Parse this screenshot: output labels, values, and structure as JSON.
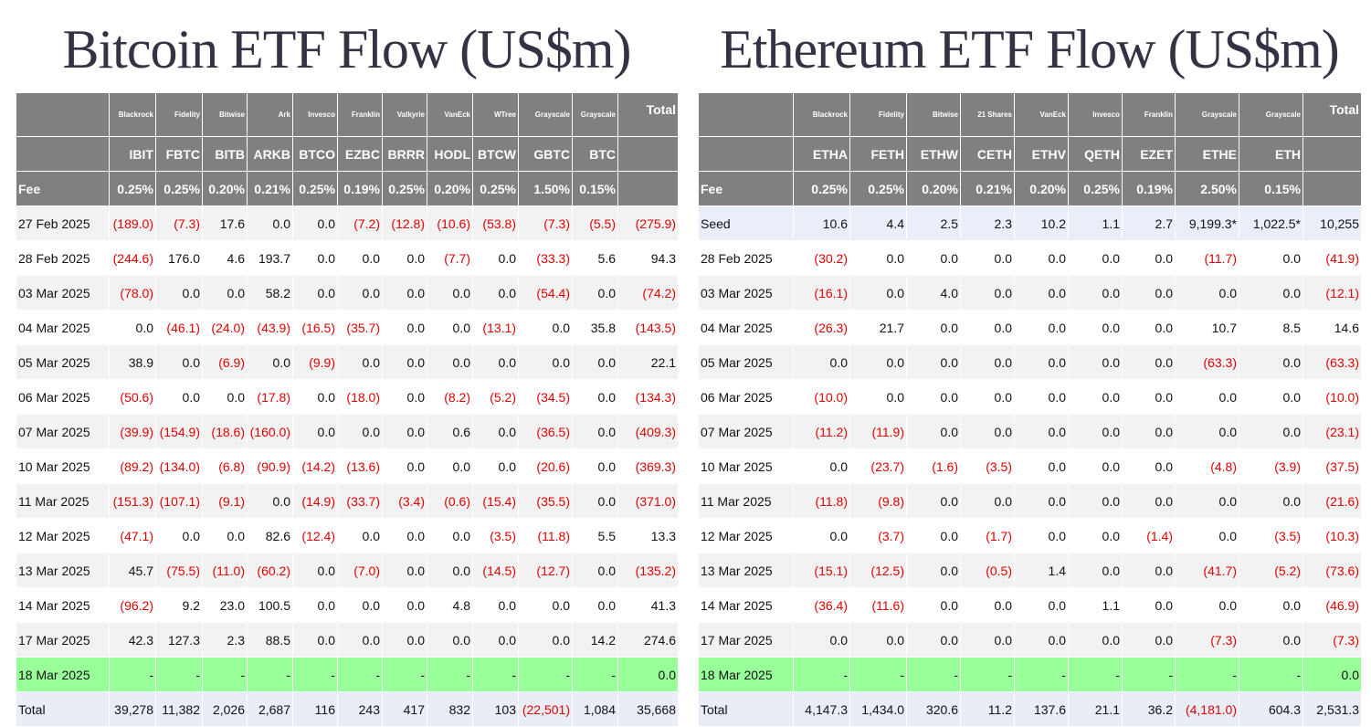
{
  "bitcoin": {
    "title": "Bitcoin ETF Flow (US$m)",
    "issuers": [
      "Blackrock",
      "Fidelity",
      "Bitwise",
      "Ark",
      "Invesco",
      "Franklin",
      "Valkyrie",
      "VanEck",
      "WTree",
      "Grayscale",
      "Grayscale"
    ],
    "total_header": "Total",
    "tickers": [
      "IBIT",
      "FBTC",
      "BITB",
      "ARKB",
      "BTCO",
      "EZBC",
      "BRRR",
      "HODL",
      "BTCW",
      "GBTC",
      "BTC"
    ],
    "fee_label": "Fee",
    "fees": [
      "0.25%",
      "0.25%",
      "0.20%",
      "0.21%",
      "0.25%",
      "0.19%",
      "0.25%",
      "0.20%",
      "0.25%",
      "1.50%",
      "0.15%"
    ],
    "rows": [
      {
        "date": "27 Feb 2025",
        "cells": [
          "(189.0)",
          "(7.3)",
          "17.6",
          "0.0",
          "0.0",
          "(7.2)",
          "(12.8)",
          "(10.6)",
          "(53.8)",
          "(7.3)",
          "(5.5)",
          "(275.9)"
        ]
      },
      {
        "date": "28 Feb 2025",
        "cells": [
          "(244.6)",
          "176.0",
          "4.6",
          "193.7",
          "0.0",
          "0.0",
          "0.0",
          "(7.7)",
          "0.0",
          "(33.3)",
          "5.6",
          "94.3"
        ]
      },
      {
        "date": "03 Mar 2025",
        "cells": [
          "(78.0)",
          "0.0",
          "0.0",
          "58.2",
          "0.0",
          "0.0",
          "0.0",
          "0.0",
          "0.0",
          "(54.4)",
          "0.0",
          "(74.2)"
        ]
      },
      {
        "date": "04 Mar 2025",
        "cells": [
          "0.0",
          "(46.1)",
          "(24.0)",
          "(43.9)",
          "(16.5)",
          "(35.7)",
          "0.0",
          "0.0",
          "(13.1)",
          "0.0",
          "35.8",
          "(143.5)"
        ]
      },
      {
        "date": "05 Mar 2025",
        "cells": [
          "38.9",
          "0.0",
          "(6.9)",
          "0.0",
          "(9.9)",
          "0.0",
          "0.0",
          "0.0",
          "0.0",
          "0.0",
          "0.0",
          "22.1"
        ]
      },
      {
        "date": "06 Mar 2025",
        "cells": [
          "(50.6)",
          "0.0",
          "0.0",
          "(17.8)",
          "0.0",
          "(18.0)",
          "0.0",
          "(8.2)",
          "(5.2)",
          "(34.5)",
          "0.0",
          "(134.3)"
        ]
      },
      {
        "date": "07 Mar 2025",
        "cells": [
          "(39.9)",
          "(154.9)",
          "(18.6)",
          "(160.0)",
          "0.0",
          "0.0",
          "0.0",
          "0.6",
          "0.0",
          "(36.5)",
          "0.0",
          "(409.3)"
        ]
      },
      {
        "date": "10 Mar 2025",
        "cells": [
          "(89.2)",
          "(134.0)",
          "(6.8)",
          "(90.9)",
          "(14.2)",
          "(13.6)",
          "0.0",
          "0.0",
          "0.0",
          "(20.6)",
          "0.0",
          "(369.3)"
        ]
      },
      {
        "date": "11 Mar 2025",
        "cells": [
          "(151.3)",
          "(107.1)",
          "(9.1)",
          "0.0",
          "(14.9)",
          "(33.7)",
          "(3.4)",
          "(0.6)",
          "(15.4)",
          "(35.5)",
          "0.0",
          "(371.0)"
        ]
      },
      {
        "date": "12 Mar 2025",
        "cells": [
          "(47.1)",
          "0.0",
          "0.0",
          "82.6",
          "(12.4)",
          "0.0",
          "0.0",
          "0.0",
          "(3.5)",
          "(11.8)",
          "5.5",
          "13.3"
        ]
      },
      {
        "date": "13 Mar 2025",
        "cells": [
          "45.7",
          "(75.5)",
          "(11.0)",
          "(60.2)",
          "0.0",
          "(7.0)",
          "0.0",
          "0.0",
          "(14.5)",
          "(12.7)",
          "0.0",
          "(135.2)"
        ]
      },
      {
        "date": "14 Mar 2025",
        "cells": [
          "(96.2)",
          "9.2",
          "23.0",
          "100.5",
          "0.0",
          "0.0",
          "0.0",
          "4.8",
          "0.0",
          "0.0",
          "0.0",
          "41.3"
        ]
      },
      {
        "date": "17 Mar 2025",
        "cells": [
          "42.3",
          "127.3",
          "2.3",
          "88.5",
          "0.0",
          "0.0",
          "0.0",
          "0.0",
          "0.0",
          "0.0",
          "14.2",
          "274.6"
        ]
      },
      {
        "date": "18 Mar 2025",
        "cells": [
          "-",
          "-",
          "-",
          "-",
          "-",
          "-",
          "-",
          "-",
          "-",
          "-",
          "-",
          "0.0"
        ]
      }
    ],
    "total": {
      "label": "Total",
      "cells": [
        "39,278",
        "11,382",
        "2,026",
        "2,687",
        "116",
        "243",
        "417",
        "832",
        "103",
        "(22,501)",
        "1,084",
        "35,668"
      ]
    }
  },
  "ethereum": {
    "title": "Ethereum ETF Flow (US$m)",
    "issuers": [
      "Blackrock",
      "Fidelity",
      "Bitwise",
      "21 Shares",
      "VanEck",
      "Invesco",
      "Franklin",
      "Grayscale",
      "Grayscale"
    ],
    "total_header": "Total",
    "tickers": [
      "ETHA",
      "FETH",
      "ETHW",
      "CETH",
      "ETHV",
      "QETH",
      "EZET",
      "ETHE",
      "ETH"
    ],
    "fee_label": "Fee",
    "fees": [
      "0.25%",
      "0.25%",
      "0.20%",
      "0.21%",
      "0.20%",
      "0.25%",
      "0.19%",
      "2.50%",
      "0.15%"
    ],
    "rows": [
      {
        "date": "Seed",
        "cells": [
          "10.6",
          "4.4",
          "2.5",
          "2.3",
          "10.2",
          "1.1",
          "2.7",
          "9,199.3*",
          "1,022.5*",
          "10,255"
        ]
      },
      {
        "date": "28 Feb 2025",
        "cells": [
          "(30.2)",
          "0.0",
          "0.0",
          "0.0",
          "0.0",
          "0.0",
          "0.0",
          "(11.7)",
          "0.0",
          "(41.9)"
        ]
      },
      {
        "date": "03 Mar 2025",
        "cells": [
          "(16.1)",
          "0.0",
          "4.0",
          "0.0",
          "0.0",
          "0.0",
          "0.0",
          "0.0",
          "0.0",
          "(12.1)"
        ]
      },
      {
        "date": "04 Mar 2025",
        "cells": [
          "(26.3)",
          "21.7",
          "0.0",
          "0.0",
          "0.0",
          "0.0",
          "0.0",
          "10.7",
          "8.5",
          "14.6"
        ]
      },
      {
        "date": "05 Mar 2025",
        "cells": [
          "0.0",
          "0.0",
          "0.0",
          "0.0",
          "0.0",
          "0.0",
          "0.0",
          "(63.3)",
          "0.0",
          "(63.3)"
        ]
      },
      {
        "date": "06 Mar 2025",
        "cells": [
          "(10.0)",
          "0.0",
          "0.0",
          "0.0",
          "0.0",
          "0.0",
          "0.0",
          "0.0",
          "0.0",
          "(10.0)"
        ]
      },
      {
        "date": "07 Mar 2025",
        "cells": [
          "(11.2)",
          "(11.9)",
          "0.0",
          "0.0",
          "0.0",
          "0.0",
          "0.0",
          "0.0",
          "0.0",
          "(23.1)"
        ]
      },
      {
        "date": "10 Mar 2025",
        "cells": [
          "0.0",
          "(23.7)",
          "(1.6)",
          "(3.5)",
          "0.0",
          "0.0",
          "0.0",
          "(4.8)",
          "(3.9)",
          "(37.5)"
        ]
      },
      {
        "date": "11 Mar 2025",
        "cells": [
          "(11.8)",
          "(9.8)",
          "0.0",
          "0.0",
          "0.0",
          "0.0",
          "0.0",
          "0.0",
          "0.0",
          "(21.6)"
        ]
      },
      {
        "date": "12 Mar 2025",
        "cells": [
          "0.0",
          "(3.7)",
          "0.0",
          "(1.7)",
          "0.0",
          "0.0",
          "(1.4)",
          "0.0",
          "(3.5)",
          "(10.3)"
        ]
      },
      {
        "date": "13 Mar 2025",
        "cells": [
          "(15.1)",
          "(12.5)",
          "0.0",
          "(0.5)",
          "1.4",
          "0.0",
          "0.0",
          "(41.7)",
          "(5.2)",
          "(73.6)"
        ]
      },
      {
        "date": "14 Mar 2025",
        "cells": [
          "(36.4)",
          "(11.6)",
          "0.0",
          "0.0",
          "0.0",
          "1.1",
          "0.0",
          "0.0",
          "0.0",
          "(46.9)"
        ]
      },
      {
        "date": "17 Mar 2025",
        "cells": [
          "0.0",
          "0.0",
          "0.0",
          "0.0",
          "0.0",
          "0.0",
          "0.0",
          "(7.3)",
          "0.0",
          "(7.3)"
        ]
      },
      {
        "date": "18 Mar 2025",
        "cells": [
          "-",
          "-",
          "-",
          "-",
          "-",
          "-",
          "-",
          "-",
          "-",
          "0.0"
        ]
      }
    ],
    "total": {
      "label": "Total",
      "cells": [
        "4,147.3",
        "1,434.0",
        "320.6",
        "11.2",
        "137.6",
        "21.1",
        "36.2",
        "(4,181.0)",
        "604.3",
        "2,531.3"
      ]
    }
  }
}
